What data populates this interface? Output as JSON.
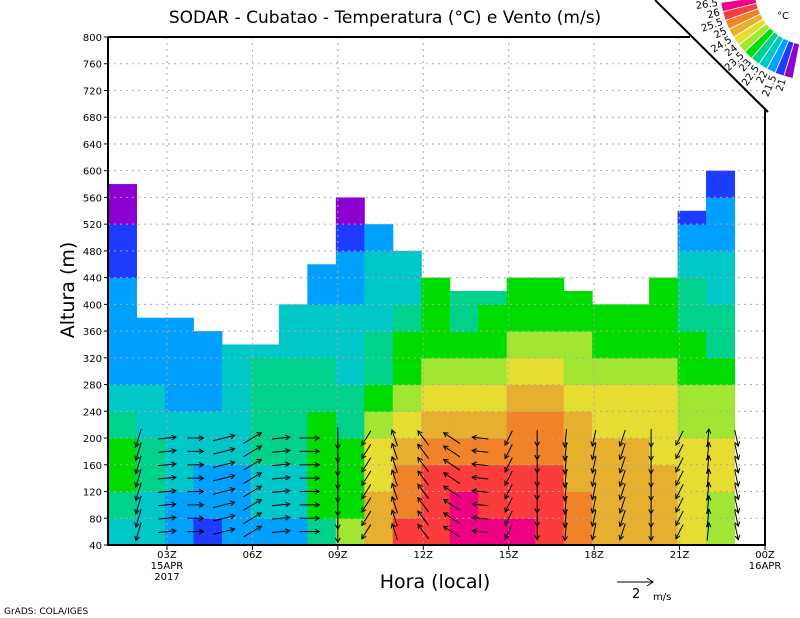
{
  "chart_data": {
    "type": "heatmap",
    "title": "SODAR - Cubatao - Temperatura (°C) e Vento (m/s)",
    "xlabel": "Hora (local)",
    "ylabel": "Altura (m)",
    "xlim": [
      0.93,
      24
    ],
    "ylim": [
      40,
      800
    ],
    "grid": true,
    "x_ticks": [
      {
        "hour": 3,
        "label": "03Z",
        "sub1": "15APR",
        "sub2": "2017"
      },
      {
        "hour": 6,
        "label": "06Z"
      },
      {
        "hour": 9,
        "label": "09Z"
      },
      {
        "hour": 12,
        "label": "12Z"
      },
      {
        "hour": 15,
        "label": "15Z"
      },
      {
        "hour": 18,
        "label": "18Z"
      },
      {
        "hour": 21,
        "label": "21Z"
      },
      {
        "hour": 24,
        "label": "00Z",
        "sub1": "16APR"
      }
    ],
    "y_ticks": [
      40,
      80,
      120,
      160,
      200,
      240,
      280,
      320,
      360,
      400,
      440,
      480,
      520,
      560,
      600,
      640,
      680,
      720,
      760,
      800
    ],
    "levels": [
      21,
      21.5,
      22,
      22.5,
      23,
      23.5,
      24,
      24.5,
      25,
      25.5,
      26,
      26.5
    ],
    "level_labels": [
      "21",
      "21.5",
      "22",
      "22.5",
      "23",
      "23.5",
      "24",
      "24.5",
      "25",
      "25.5",
      "26",
      "26.5"
    ],
    "colors": [
      "#8c00d2",
      "#1e3cff",
      "#00a0ff",
      "#00c8c8",
      "#00d28c",
      "#00dc00",
      "#a0e632",
      "#e6dc32",
      "#e6af2d",
      "#f08228",
      "#fa3c3c",
      "#f00082"
    ],
    "legend_unit": "°C",
    "legend_placement": "top-right",
    "band_height_m": 40,
    "columns": [
      {
        "hour": 0.93,
        "top": 580,
        "temp": [
          22.3,
          22.8,
          23.3,
          23.3,
          22.8,
          22.3,
          21.8,
          21.8,
          21.8,
          21.8,
          21.3,
          21.3,
          20.8,
          20.8
        ]
      },
      {
        "hour": 1.93,
        "top": 380,
        "temp": [
          22.3,
          22.3,
          22.8,
          22.8,
          22.3,
          22.3,
          21.8,
          21.8,
          21.8
        ]
      },
      {
        "hour": 2.93,
        "top": 380,
        "temp": [
          21.8,
          21.8,
          22.3,
          22.3,
          22.3,
          21.8,
          21.8,
          21.8,
          21.8
        ]
      },
      {
        "hour": 3.93,
        "top": 360,
        "temp": [
          21.3,
          21.8,
          21.8,
          22.3,
          22.3,
          21.8,
          21.8,
          21.8
        ]
      },
      {
        "hour": 4.93,
        "top": 340,
        "temp": [
          21.8,
          21.8,
          21.8,
          22.3,
          22.3,
          22.3,
          22.3,
          22.3
        ]
      },
      {
        "hour": 5.93,
        "top": 340,
        "temp": [
          21.8,
          22.3,
          22.3,
          22.8,
          22.8,
          22.8,
          22.8,
          22.3
        ]
      },
      {
        "hour": 6.93,
        "top": 400,
        "temp": [
          21.8,
          22.3,
          22.3,
          22.8,
          22.8,
          22.8,
          22.8,
          22.3,
          22.3
        ]
      },
      {
        "hour": 7.93,
        "top": 460,
        "temp": [
          22.8,
          23.3,
          23.3,
          23.3,
          23.3,
          22.8,
          22.8,
          22.3,
          22.3,
          21.8,
          21.8
        ]
      },
      {
        "hour": 8.93,
        "top": 560,
        "temp": [
          23.8,
          23.3,
          23.3,
          23.3,
          22.8,
          22.8,
          22.3,
          22.3,
          22.3,
          21.8,
          21.8,
          21.3,
          20.8
        ]
      },
      {
        "hour": 9.93,
        "top": 520,
        "temp": [
          24.8,
          24.8,
          24.3,
          24.3,
          23.8,
          23.3,
          22.8,
          22.8,
          22.3,
          22.3,
          22.3,
          21.8
        ]
      },
      {
        "hour": 10.93,
        "top": 480,
        "temp": [
          25.8,
          25.3,
          25.3,
          24.8,
          24.3,
          23.8,
          23.3,
          23.3,
          22.8,
          22.3,
          22.3
        ]
      },
      {
        "hour": 11.93,
        "top": 440,
        "temp": [
          25.8,
          25.8,
          25.8,
          25.3,
          24.8,
          24.3,
          23.8,
          23.3,
          23.3,
          23.3
        ]
      },
      {
        "hour": 12.93,
        "top": 420,
        "temp": [
          26.3,
          26.3,
          25.8,
          25.3,
          24.8,
          24.3,
          23.8,
          23.3,
          22.8,
          22.8
        ]
      },
      {
        "hour": 13.93,
        "top": 420,
        "temp": [
          26.3,
          25.8,
          25.8,
          25.3,
          24.8,
          24.3,
          23.8,
          23.3,
          23.3,
          22.8
        ]
      },
      {
        "hour": 14.93,
        "top": 440,
        "temp": [
          26.3,
          25.8,
          25.8,
          25.3,
          25.3,
          24.8,
          24.3,
          23.8,
          23.3,
          23.3
        ]
      },
      {
        "hour": 15.93,
        "top": 440,
        "temp": [
          25.8,
          25.8,
          25.8,
          25.3,
          25.3,
          24.8,
          24.3,
          23.8,
          23.3,
          23.3
        ]
      },
      {
        "hour": 16.93,
        "top": 420,
        "temp": [
          25.3,
          25.3,
          24.8,
          24.8,
          24.8,
          24.3,
          23.8,
          23.8,
          23.3,
          23.3
        ]
      },
      {
        "hour": 17.93,
        "top": 400,
        "temp": [
          24.8,
          24.8,
          24.8,
          24.8,
          24.3,
          24.3,
          23.8,
          23.3,
          23.3
        ]
      },
      {
        "hour": 18.93,
        "top": 400,
        "temp": [
          24.8,
          24.8,
          24.8,
          24.8,
          24.3,
          24.3,
          23.8,
          23.3,
          23.3
        ]
      },
      {
        "hour": 19.93,
        "top": 440,
        "temp": [
          24.8,
          24.8,
          24.8,
          24.3,
          24.3,
          24.3,
          23.8,
          23.3,
          23.3,
          23.3
        ]
      },
      {
        "hour": 20.93,
        "top": 540,
        "temp": [
          24.3,
          24.3,
          24.3,
          24.3,
          23.8,
          23.8,
          23.3,
          23.3,
          22.8,
          22.8,
          22.3,
          21.8,
          21.3
        ]
      },
      {
        "hour": 21.93,
        "top": 600,
        "temp": [
          23.8,
          23.8,
          24.3,
          24.3,
          23.8,
          23.8,
          23.3,
          22.8,
          22.8,
          22.3,
          22.3,
          21.8,
          21.8,
          21.3
        ]
      }
    ],
    "wind": {
      "heights": [
        60,
        80,
        100,
        120,
        140,
        160,
        180,
        200
      ],
      "reference": {
        "speed": 2,
        "label": "2",
        "unit": "m/s"
      },
      "columns": [
        {
          "hour": 2,
          "u": -0.3,
          "v": -1.0
        },
        {
          "hour": 3,
          "u": 1.0,
          "v": 0.1
        },
        {
          "hour": 4,
          "u": 0.9,
          "v": 0.0
        },
        {
          "hour": 5,
          "u": 1.2,
          "v": 0.3
        },
        {
          "hour": 6,
          "u": 1.0,
          "v": 0.6
        },
        {
          "hour": 7,
          "u": 1.0,
          "v": 0.1
        },
        {
          "hour": 8,
          "u": 1.1,
          "v": 0.0
        },
        {
          "hour": 9,
          "u": 0.0,
          "v": -1.2
        },
        {
          "hour": 10,
          "u": -0.5,
          "v": -0.8
        },
        {
          "hour": 11,
          "u": -0.3,
          "v": 0.9
        },
        {
          "hour": 12,
          "u": -0.6,
          "v": 0.8
        },
        {
          "hour": 13,
          "u": -0.9,
          "v": 0.6
        },
        {
          "hour": 14,
          "u": -0.9,
          "v": 0.1
        },
        {
          "hour": 15,
          "u": -0.4,
          "v": -0.8
        },
        {
          "hour": 16,
          "u": 0.0,
          "v": -0.9
        },
        {
          "hour": 17,
          "u": -0.1,
          "v": -1.0
        },
        {
          "hour": 18,
          "u": -0.2,
          "v": -0.9
        },
        {
          "hour": 19,
          "u": -0.3,
          "v": -0.9
        },
        {
          "hour": 20,
          "u": 0.0,
          "v": -1.0
        },
        {
          "hour": 21,
          "u": -0.4,
          "v": -0.8
        },
        {
          "hour": 22,
          "u": 0.1,
          "v": 1.0
        },
        {
          "hour": 23,
          "u": 0.2,
          "v": -0.9
        }
      ]
    }
  },
  "footer": {
    "credit": "GrADS: COLA/IGES"
  }
}
